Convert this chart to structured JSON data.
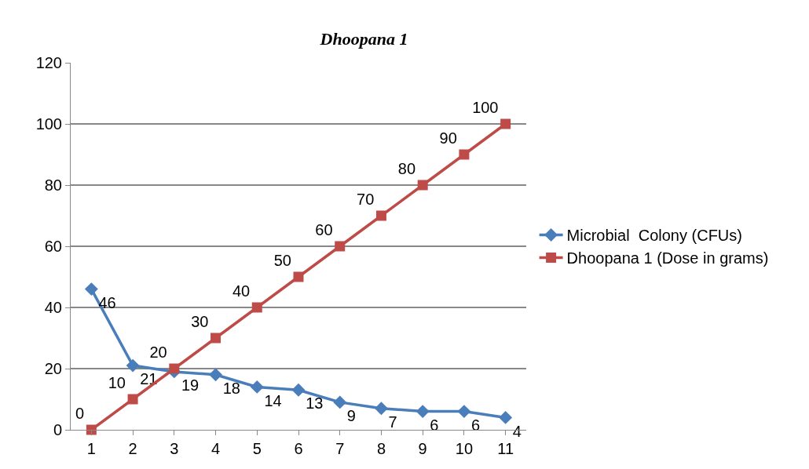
{
  "chart_data": {
    "type": "line",
    "title": "Dhoopana 1",
    "categories": [
      "1",
      "2",
      "3",
      "4",
      "5",
      "6",
      "7",
      "8",
      "9",
      "10",
      "11"
    ],
    "series": [
      {
        "name": "Microbial  Colony (CFUs)",
        "color": "#4a7ebb",
        "marker": "diamond",
        "values": [
          46,
          21,
          19,
          18,
          14,
          13,
          9,
          7,
          6,
          6,
          4
        ]
      },
      {
        "name": "Dhoopana 1 (Dose in grams)",
        "color": "#be4b48",
        "marker": "square",
        "values": [
          0,
          10,
          20,
          30,
          40,
          50,
          60,
          70,
          80,
          90,
          100
        ]
      }
    ],
    "ylim": [
      0,
      120
    ],
    "yticks": [
      0,
      20,
      40,
      60,
      80,
      100,
      120
    ],
    "grid": "y",
    "legend": "right",
    "data_labels": true
  }
}
